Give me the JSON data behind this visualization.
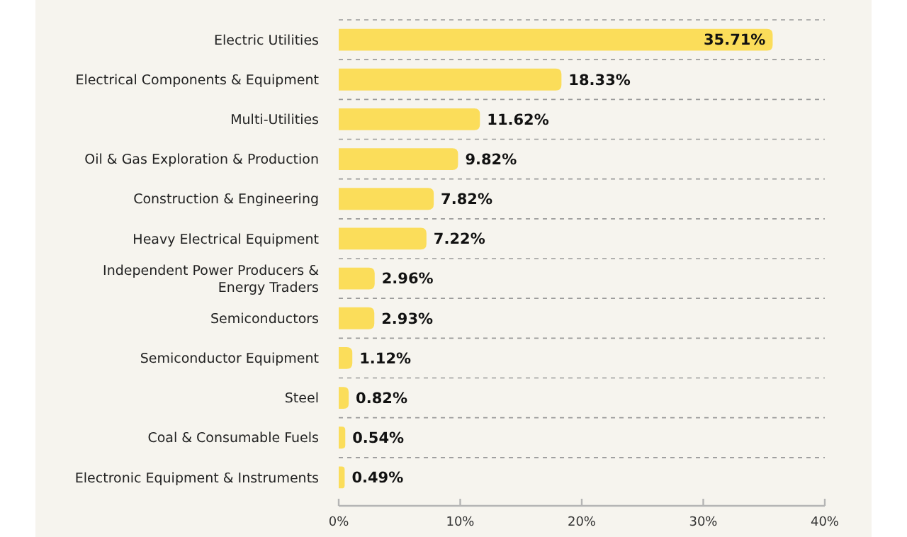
{
  "chart_data": {
    "type": "bar",
    "orientation": "horizontal",
    "categories": [
      "Electric Utilities",
      "Electrical Components & Equipment",
      "Multi-Utilities",
      "Oil & Gas Exploration & Production",
      "Construction & Engineering",
      "Heavy Electrical Equipment",
      "Independent Power Producers & Energy Traders",
      "Semiconductors",
      "Semiconductor Equipment",
      "Steel",
      "Coal & Consumable Fuels",
      "Electronic Equipment & Instruments"
    ],
    "values": [
      35.71,
      18.33,
      11.62,
      9.82,
      7.82,
      7.22,
      2.96,
      2.93,
      1.12,
      0.82,
      0.54,
      0.49
    ],
    "value_labels": [
      "35.71%",
      "18.33%",
      "11.62%",
      "9.82%",
      "7.82%",
      "7.22%",
      "2.96%",
      "2.93%",
      "1.12%",
      "0.82%",
      "0.54%",
      "0.49%"
    ],
    "color": "#fbdd5a",
    "xlim": [
      0,
      40
    ],
    "xticks": [
      {
        "value": 0,
        "label": "0%"
      },
      {
        "value": 10,
        "label": "10%"
      },
      {
        "value": 20,
        "label": "20%"
      },
      {
        "value": 30,
        "label": "30%"
      },
      {
        "value": 40,
        "label": "40%"
      }
    ],
    "grid": "y"
  }
}
